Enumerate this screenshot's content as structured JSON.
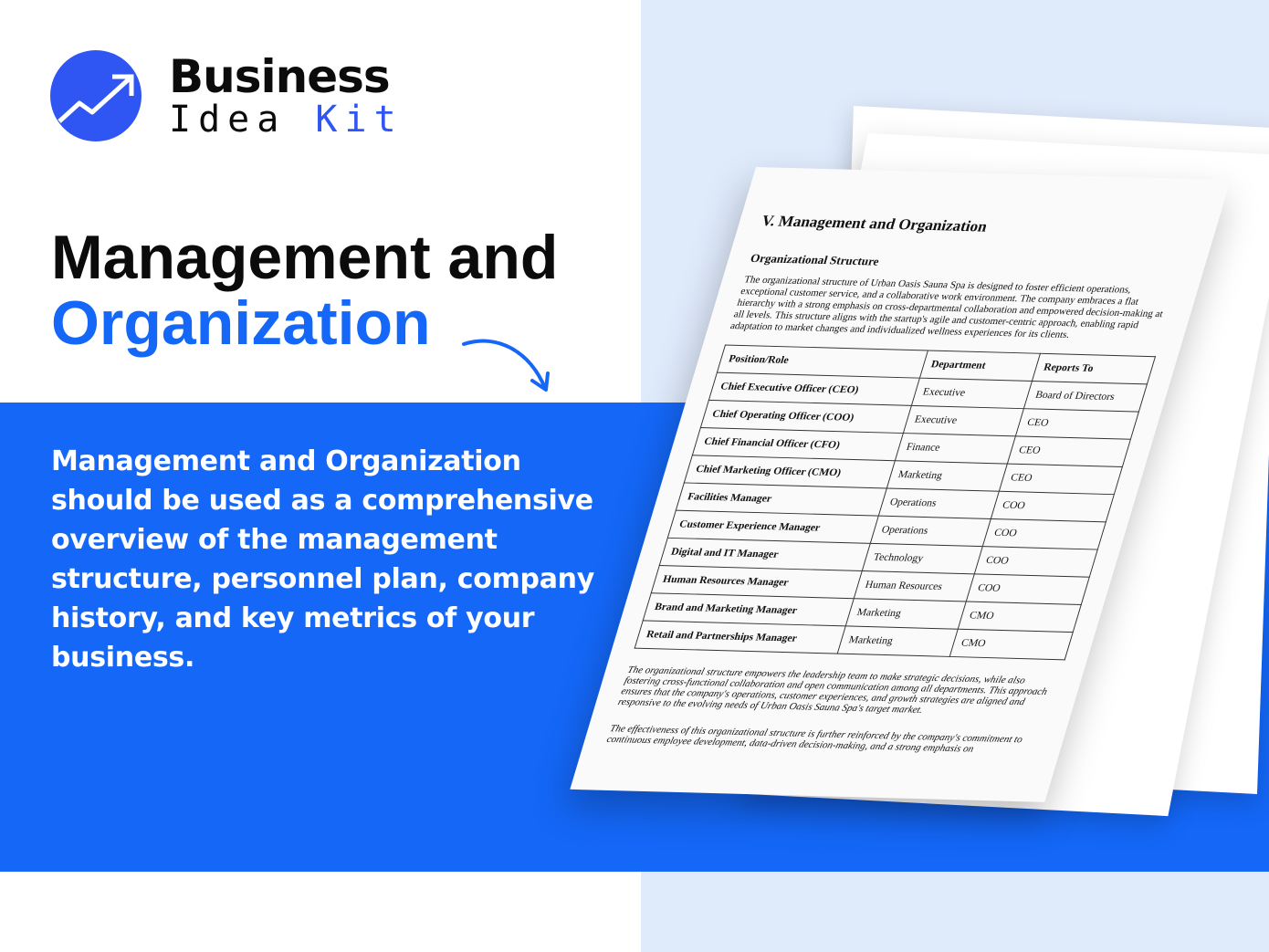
{
  "brand": {
    "line1": "Business",
    "line2a": "Idea",
    "line2b": "Kit",
    "accent": "#2f55f2"
  },
  "headline": {
    "line1": "Management and",
    "line2": "Organization"
  },
  "description": "Management and Organization should be used as a comprehensive overview of the management structure, personnel plan, company history, and key metrics of your business.",
  "colors": {
    "band": "#1467f7",
    "right_bg": "#dfeafb"
  },
  "document": {
    "title": "V. Management and Organization",
    "subtitle": "Organizational Structure",
    "intro": "The organizational structure of Urban Oasis Sauna Spa is designed to foster efficient operations, exceptional customer service, and a collaborative work environment. The company embraces a flat hierarchy with a strong emphasis on cross-departmental collaboration and empowered decision-making at all levels. This structure aligns with the startup's agile and customer-centric approach, enabling rapid adaptation to market changes and individualized wellness experiences for its clients.",
    "table": {
      "headers": [
        "Position/Role",
        "Department",
        "Reports To"
      ],
      "rows": [
        [
          "Chief Executive Officer (CEO)",
          "Executive",
          "Board of Directors"
        ],
        [
          "Chief Operating Officer (COO)",
          "Executive",
          "CEO"
        ],
        [
          "Chief Financial Officer (CFO)",
          "Finance",
          "CEO"
        ],
        [
          "Chief Marketing Officer (CMO)",
          "Marketing",
          "CEO"
        ],
        [
          "Facilities Manager",
          "Operations",
          "COO"
        ],
        [
          "Customer Experience Manager",
          "Operations",
          "COO"
        ],
        [
          "Digital and IT Manager",
          "Technology",
          "COO"
        ],
        [
          "Human Resources Manager",
          "Human Resources",
          "COO"
        ],
        [
          "Brand and Marketing Manager",
          "Marketing",
          "CMO"
        ],
        [
          "Retail and Partnerships Manager",
          "Marketing",
          "CMO"
        ]
      ]
    },
    "para2": "The organizational structure empowers the leadership team to make strategic decisions, while also fostering cross-functional collaboration and open communication among all departments. This approach ensures that the company's operations, customer experiences, and growth strategies are aligned and responsive to the evolving needs of Urban Oasis Sauna Spa's target market.",
    "para3": "The effectiveness of this organizational structure is further reinforced by the company's commitment to continuous employee development, data-driven decision-making, and a strong emphasis on"
  }
}
